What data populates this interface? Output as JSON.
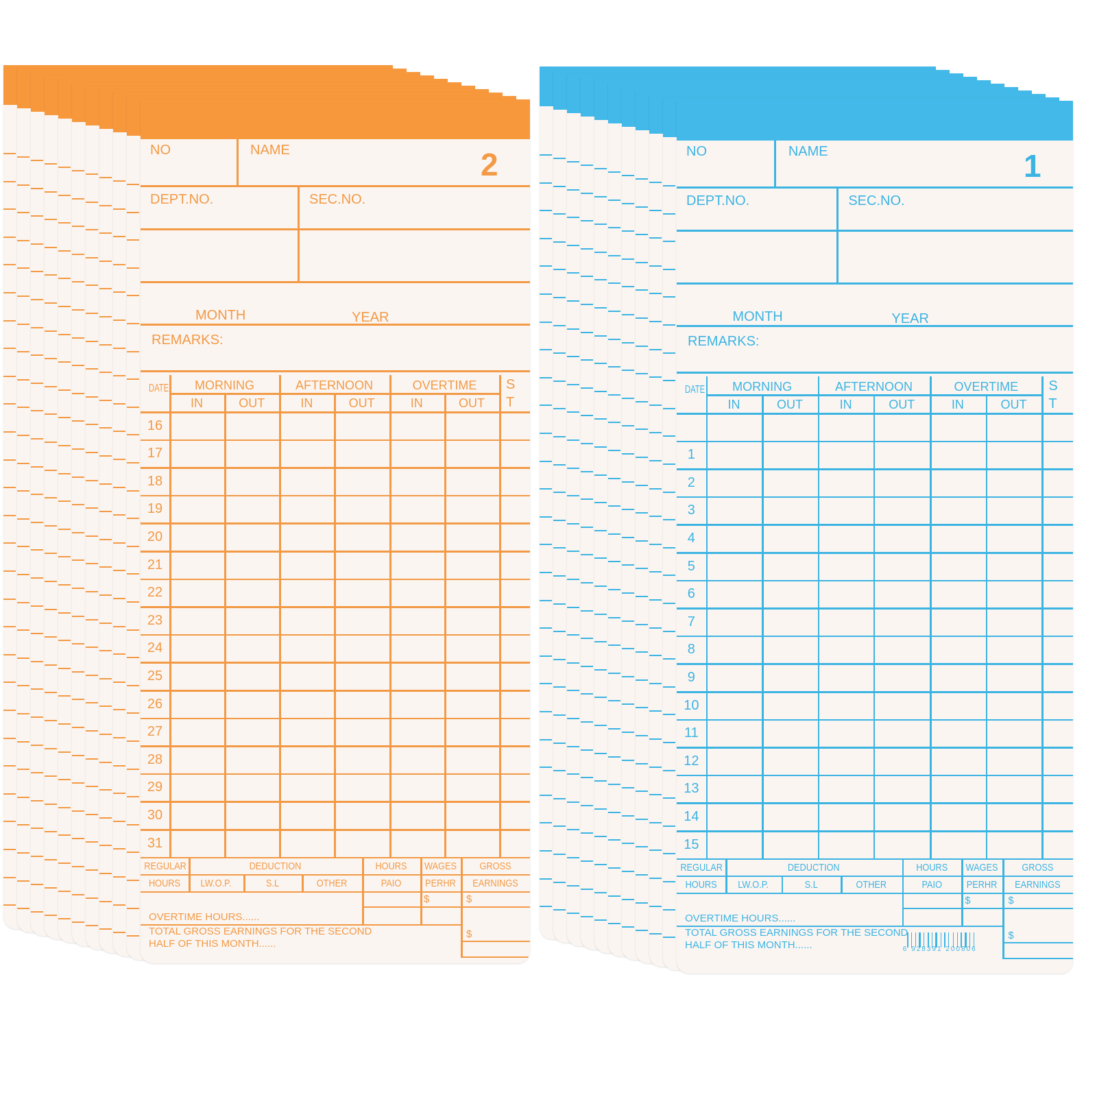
{
  "cards": [
    {
      "id": "orange",
      "color": "#f29a45",
      "band_color": "#f7983c",
      "card_number": "2",
      "dates": [
        "16",
        "17",
        "18",
        "19",
        "20",
        "21",
        "22",
        "23",
        "24",
        "25",
        "26",
        "27",
        "28",
        "29",
        "30",
        "31"
      ]
    },
    {
      "id": "blue",
      "color": "#3cb4e2",
      "band_color": "#42b9e8",
      "card_number": "1",
      "dates": [
        "",
        "1",
        "2",
        "3",
        "4",
        "5",
        "6",
        "7",
        "8",
        "9",
        "10",
        "11",
        "12",
        "13",
        "14",
        "15"
      ],
      "barcode": "6 928391 200806"
    }
  ],
  "labels": {
    "no": "NO",
    "name": "NAME",
    "dept": "DEPT.NO.",
    "sec": "SEC.NO.",
    "month": "MONTH",
    "year": "YEAR",
    "remarks": "REMARKS:",
    "date": "DATE",
    "morning": "MORNING",
    "afternoon": "AFTERNOON",
    "overtime": "OVERTIME",
    "in": "IN",
    "out": "OUT",
    "s": "S",
    "t": "T",
    "regular": "REGULAR",
    "hours": "HOURS",
    "deduction": "DEDUCTION",
    "lwop": "LW.O.P.",
    "sl": "S.L",
    "other": "OTHER",
    "hours_top": "HOURS",
    "paid": "PAIO",
    "wages": "WAGES",
    "perhr": "PERHR",
    "gross": "GROSS",
    "earnings": "EARNINGS",
    "dollar": "$",
    "overtime_hours": "OVERTIME HOURS......",
    "total_line1": "TOTAL GROSS EARNINGS FOR THE SECOND",
    "total_line2": "HALF OF THIS MONTH......"
  }
}
